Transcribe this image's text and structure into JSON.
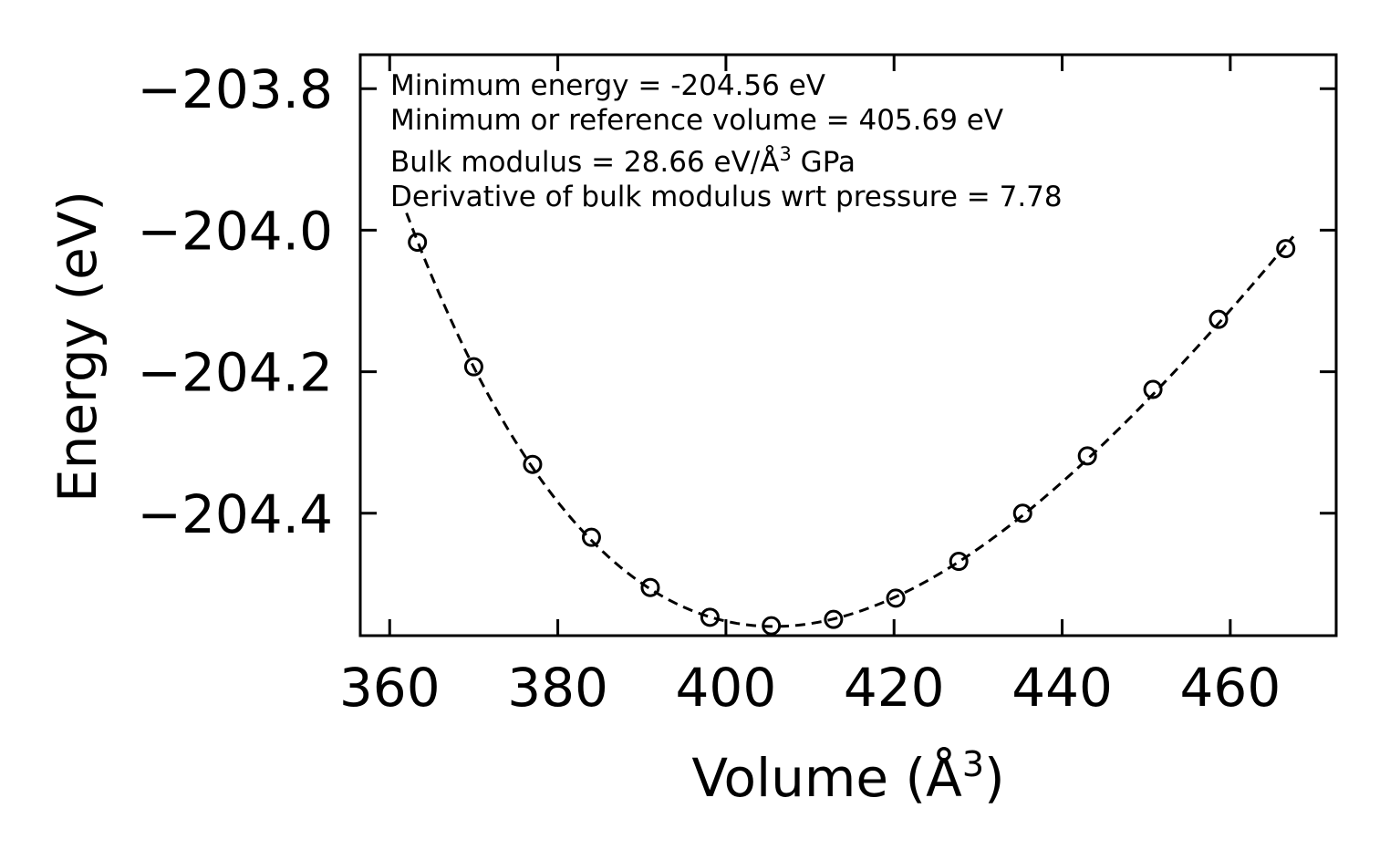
{
  "chart_data": {
    "type": "scatter",
    "xlabel": "Volume (Å",
    "xlabel_sup": "3",
    "xlabel_close": ")",
    "ylabel": "Energy (eV)",
    "xlim": [
      356.5,
      472.6
    ],
    "ylim": [
      -204.573,
      -203.752
    ],
    "x_ticks": [
      360,
      380,
      400,
      420,
      440,
      460
    ],
    "x_tick_labels": [
      "360",
      "380",
      "400",
      "420",
      "440",
      "460"
    ],
    "y_ticks": [
      -203.8,
      -204.0,
      -204.2,
      -204.4
    ],
    "y_tick_labels": [
      "−203.8",
      "−204.0",
      "−204.2",
      "−204.4"
    ],
    "series": [
      {
        "name": "data",
        "marker": "open-circle",
        "x": [
          363.3,
          370.0,
          377.0,
          384.0,
          391.0,
          398.1,
          405.4,
          412.8,
          420.2,
          427.7,
          435.3,
          443.0,
          450.8,
          458.6,
          466.6
        ],
        "y": [
          -204.017,
          -204.193,
          -204.331,
          -204.434,
          -204.505,
          -204.547,
          -204.559,
          -204.55,
          -204.52,
          -204.468,
          -204.4,
          -204.319,
          -204.225,
          -204.126,
          -204.026
        ]
      },
      {
        "name": "fit",
        "style": "dashed",
        "x_range": [
          362,
          467.5
        ]
      }
    ],
    "annotations": [
      {
        "text": "Minimum energy = -204.56 eV"
      },
      {
        "text": "Minimum or reference volume = 405.69 eV"
      },
      {
        "text": "Bulk modulus = 28.66 eV/Å",
        "sup": "3",
        "suffix": " GPa"
      },
      {
        "text": "Derivative of bulk modulus wrt pressure = 7.78"
      }
    ],
    "fit_params": {
      "E0": -204.56,
      "V0": 405.69,
      "B0": 28.66,
      "B0_prime": 7.78
    },
    "colors": {
      "line": "#000000",
      "background": "#ffffff"
    },
    "grid": false,
    "legend": "none"
  }
}
